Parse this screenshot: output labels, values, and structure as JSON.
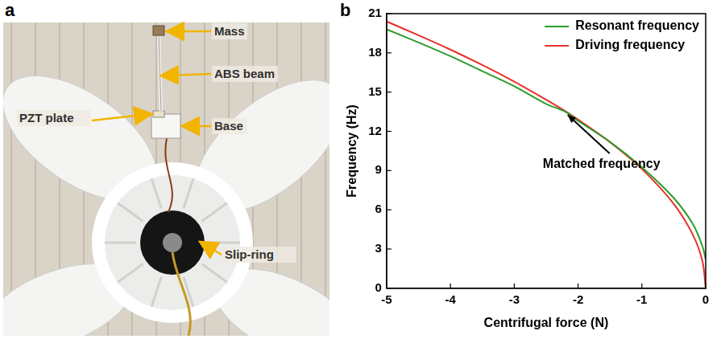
{
  "photo_panel": {
    "letter": "a",
    "callouts": [
      "Mass",
      "ABS beam",
      "PZT plate",
      "Base",
      "Slip-ring"
    ]
  },
  "chart_panel_letter": "b",
  "chart_data": {
    "type": "line",
    "x_label": "Centrifugal force (N)",
    "y_label": "Frequency (Hz)",
    "x": [
      -5,
      -4.5,
      -4,
      -3.5,
      -3,
      -2.5,
      -2.2,
      -2,
      -1.5,
      -1,
      -0.5,
      -0.2,
      -0.05,
      0
    ],
    "series": [
      {
        "name": "Resonant frequency",
        "color": "#2a9d2a",
        "values": [
          19.8,
          18.8,
          17.75,
          16.6,
          15.45,
          14.1,
          13.5,
          12.8,
          11.2,
          9.25,
          6.9,
          4.9,
          3.2,
          2.2
        ]
      },
      {
        "name": "Driving frequency",
        "color": "#e8302a",
        "values": [
          20.4,
          19.35,
          18.25,
          17.07,
          15.8,
          14.42,
          13.55,
          12.9,
          11.17,
          9.12,
          6.45,
          4.08,
          2.04,
          0
        ]
      }
    ],
    "xlim": [
      -5,
      0
    ],
    "xticks": [
      -5,
      -4,
      -3,
      -2,
      -1,
      0
    ],
    "ylim": [
      0,
      21
    ],
    "yticks": [
      0,
      3,
      6,
      9,
      12,
      15,
      18,
      21
    ],
    "grid": false,
    "legend": "top-right",
    "annotations": [
      {
        "text": "Matched frequency",
        "x": -2.2,
        "y": 13.5
      }
    ]
  }
}
